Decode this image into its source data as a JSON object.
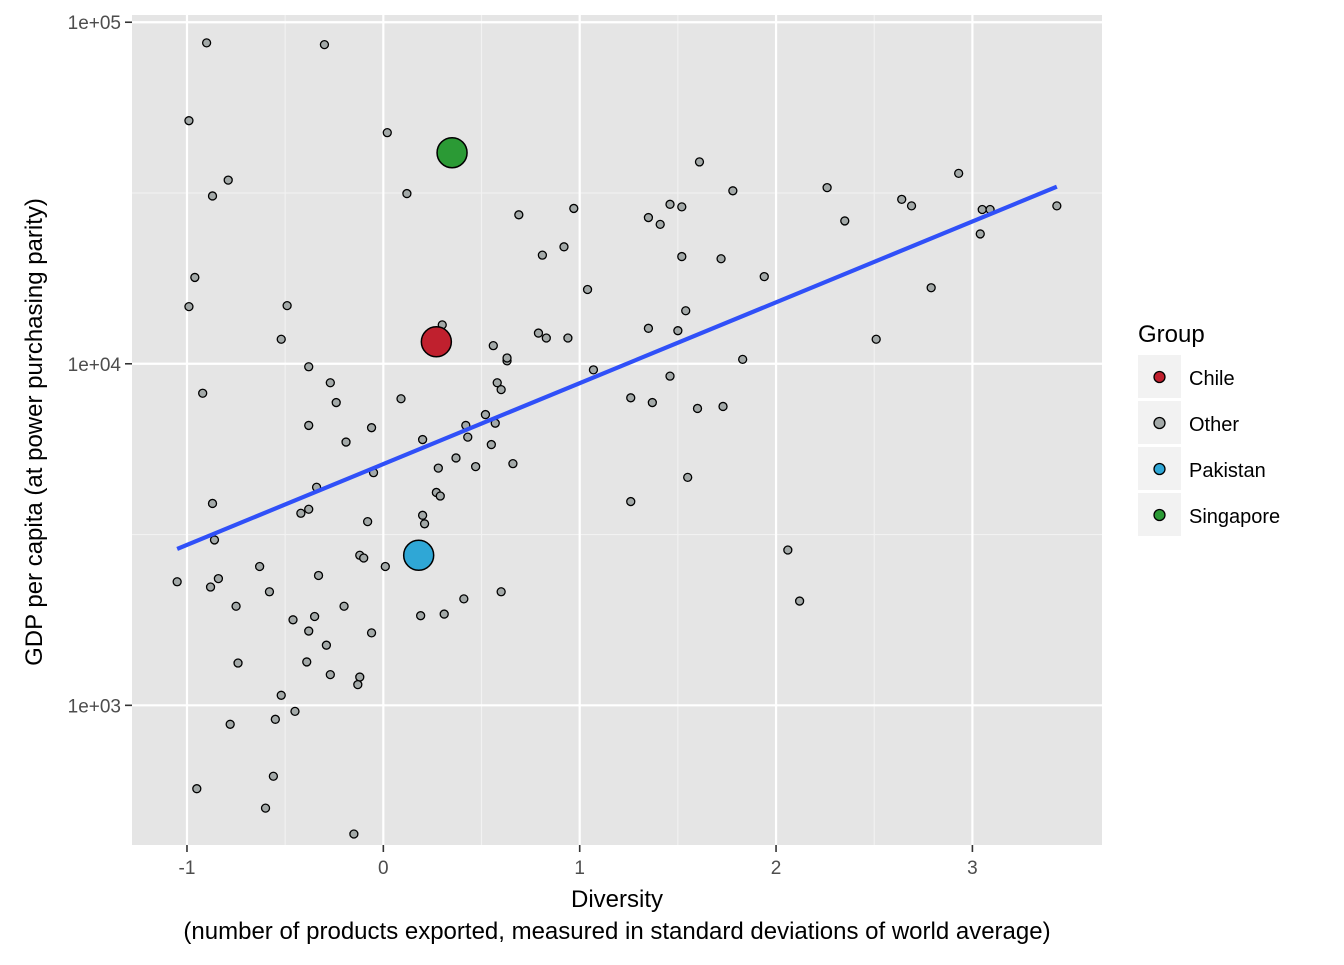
{
  "chart_data": {
    "type": "scatter",
    "xlabel": "Diversity",
    "xlabel_line2": "(number of products exported, measured in standard deviations of world average)",
    "ylabel": "GDP per capita (at power purchasing parity)",
    "y_scale": "log10",
    "xlim": [
      -1.28,
      3.66
    ],
    "ylim": [
      390,
      105000
    ],
    "x_ticks": [
      -1,
      0,
      1,
      2,
      3
    ],
    "x_tick_labels": [
      "-1",
      "0",
      "1",
      "2",
      "3"
    ],
    "y_ticks": [
      1000,
      10000,
      100000
    ],
    "y_tick_labels": [
      "1e+03",
      "1e+04",
      "1e+05"
    ],
    "grid": true,
    "legend": {
      "title": "Group",
      "position": "right",
      "entries": [
        "Chile",
        "Other",
        "Pakistan",
        "Singapore"
      ]
    },
    "colors": {
      "Chile": "#c0202e",
      "Other": "#a3a9a8",
      "Pakistan": "#2fa7d6",
      "Singapore": "#2b9a35",
      "trend": "#3050f8",
      "panel": "#e5e5e5"
    },
    "trend_line": {
      "x": [
        -1.05,
        3.43
      ],
      "y": [
        2870,
        33000
      ]
    },
    "highlighted": [
      {
        "name": "Chile",
        "x": 0.27,
        "y": 11600
      },
      {
        "name": "Pakistan",
        "x": 0.18,
        "y": 2750
      },
      {
        "name": "Singapore",
        "x": 0.35,
        "y": 41500
      }
    ],
    "series": [
      {
        "name": "Other",
        "points": [
          [
            -0.9,
            87000
          ],
          [
            -0.3,
            86000
          ],
          [
            -0.99,
            51500
          ],
          [
            0.02,
            47500
          ],
          [
            -0.79,
            34500
          ],
          [
            -0.87,
            31000
          ],
          [
            0.12,
            31500
          ],
          [
            -0.96,
            17900
          ],
          [
            -0.99,
            14700
          ],
          [
            -0.49,
            14800
          ],
          [
            -0.52,
            11800
          ],
          [
            -0.92,
            8200
          ],
          [
            -0.38,
            9800
          ],
          [
            -0.27,
            8800
          ],
          [
            -0.24,
            7700
          ],
          [
            -0.38,
            6600
          ],
          [
            -0.06,
            6500
          ],
          [
            -0.19,
            5900
          ],
          [
            -0.05,
            4800
          ],
          [
            -0.34,
            4350
          ],
          [
            -0.87,
            3900
          ],
          [
            -0.38,
            3750
          ],
          [
            -0.42,
            3650
          ],
          [
            -0.08,
            3450
          ],
          [
            -0.86,
            3050
          ],
          [
            -0.12,
            2750
          ],
          [
            -0.1,
            2700
          ],
          [
            -0.63,
            2550
          ],
          [
            0.01,
            2550
          ],
          [
            -0.33,
            2400
          ],
          [
            -1.05,
            2300
          ],
          [
            -0.84,
            2350
          ],
          [
            -0.88,
            2220
          ],
          [
            -0.58,
            2150
          ],
          [
            -0.2,
            1950
          ],
          [
            -0.75,
            1950
          ],
          [
            -0.35,
            1820
          ],
          [
            -0.46,
            1780
          ],
          [
            -0.38,
            1650
          ],
          [
            -0.06,
            1630
          ],
          [
            -0.29,
            1500
          ],
          [
            -0.39,
            1340
          ],
          [
            -0.74,
            1330
          ],
          [
            -0.27,
            1230
          ],
          [
            -0.12,
            1210
          ],
          [
            -0.13,
            1150
          ],
          [
            -0.52,
            1070
          ],
          [
            -0.45,
            960
          ],
          [
            -0.55,
            910
          ],
          [
            -0.78,
            880
          ],
          [
            -0.56,
            620
          ],
          [
            -0.95,
            570
          ],
          [
            -0.6,
            500
          ],
          [
            -0.15,
            420
          ],
          [
            0.3,
            13000
          ],
          [
            0.09,
            7900
          ],
          [
            0.2,
            6000
          ],
          [
            0.28,
            4950
          ],
          [
            0.27,
            4200
          ],
          [
            0.29,
            4100
          ],
          [
            0.2,
            3600
          ],
          [
            0.21,
            3400
          ],
          [
            0.42,
            6600
          ],
          [
            0.43,
            6100
          ],
          [
            0.37,
            5300
          ],
          [
            0.47,
            5000
          ],
          [
            0.52,
            7100
          ],
          [
            0.55,
            5800
          ],
          [
            0.57,
            6700
          ],
          [
            0.56,
            11300
          ],
          [
            0.58,
            8800
          ],
          [
            0.6,
            8400
          ],
          [
            0.63,
            10200
          ],
          [
            0.63,
            10400
          ],
          [
            0.66,
            5100
          ],
          [
            0.41,
            2050
          ],
          [
            0.6,
            2150
          ],
          [
            0.31,
            1850
          ],
          [
            0.19,
            1830
          ],
          [
            0.69,
            27300
          ],
          [
            0.79,
            12300
          ],
          [
            0.81,
            20800
          ],
          [
            0.83,
            11900
          ],
          [
            0.92,
            22000
          ],
          [
            0.94,
            11900
          ],
          [
            0.97,
            28500
          ],
          [
            1.04,
            16500
          ],
          [
            1.07,
            9600
          ],
          [
            1.26,
            7950
          ],
          [
            1.26,
            3950
          ],
          [
            1.35,
            26800
          ],
          [
            1.35,
            12700
          ],
          [
            1.37,
            7700
          ],
          [
            1.41,
            25600
          ],
          [
            1.46,
            9200
          ],
          [
            1.46,
            29300
          ],
          [
            1.5,
            12500
          ],
          [
            1.52,
            28800
          ],
          [
            1.52,
            20600
          ],
          [
            1.54,
            14300
          ],
          [
            1.55,
            4650
          ],
          [
            1.6,
            7400
          ],
          [
            1.61,
            39000
          ],
          [
            1.72,
            20300
          ],
          [
            1.73,
            7500
          ],
          [
            1.78,
            32100
          ],
          [
            1.83,
            10300
          ],
          [
            1.94,
            18000
          ],
          [
            2.06,
            2850
          ],
          [
            2.12,
            2020
          ],
          [
            2.26,
            32800
          ],
          [
            2.35,
            26200
          ],
          [
            2.51,
            11800
          ],
          [
            2.64,
            30300
          ],
          [
            2.69,
            29000
          ],
          [
            2.79,
            16700
          ],
          [
            2.93,
            36100
          ],
          [
            3.04,
            24000
          ],
          [
            3.05,
            28300
          ],
          [
            3.09,
            28300
          ],
          [
            3.43,
            29000
          ]
        ]
      }
    ]
  }
}
